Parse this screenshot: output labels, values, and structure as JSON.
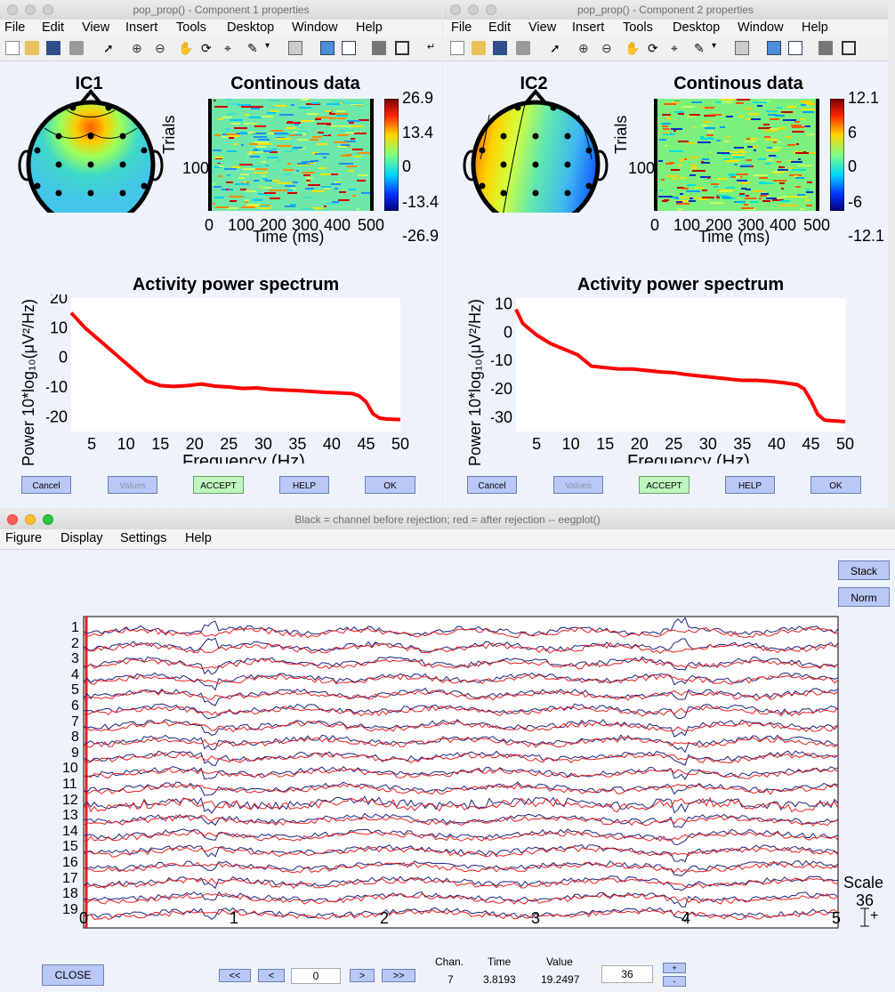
{
  "win1": {
    "title": "pop_prop() - Component 1 properties",
    "menu": [
      "File",
      "Edit",
      "View",
      "Insert",
      "Tools",
      "Desktop",
      "Window",
      "Help"
    ],
    "topo_title": "IC1",
    "erp_title": "Continous data",
    "erp_ylabel": "Trials",
    "erp_ytick": "100",
    "erp_xticks": [
      "0",
      "100",
      "200",
      "300",
      "400",
      "500"
    ],
    "erp_xlabel": "Time (ms)",
    "cbar_ticks": [
      "26.9",
      "13.4",
      "0",
      "-13.4",
      "-26.9"
    ],
    "spec_title": "Activity power spectrum",
    "spec_ylabel": "Power 10*log₁₀(μV²/Hz)",
    "spec_yticks": [
      "20",
      "10",
      "0",
      "-10",
      "-20"
    ],
    "spec_xticks": [
      "5",
      "10",
      "15",
      "20",
      "25",
      "30",
      "35",
      "40",
      "45",
      "50"
    ],
    "spec_xlabel": "Frequency (Hz)",
    "buttons": {
      "cancel": "Cancel",
      "values": "Values",
      "accept": "ACCEPT",
      "help": "HELP",
      "ok": "OK"
    }
  },
  "win2": {
    "title": "pop_prop() - Component 2 properties",
    "menu": [
      "File",
      "Edit",
      "View",
      "Insert",
      "Tools",
      "Desktop",
      "Window",
      "Help"
    ],
    "topo_title": "IC2",
    "erp_title": "Continous data",
    "erp_ylabel": "Trials",
    "erp_ytick": "100",
    "erp_xticks": [
      "0",
      "100",
      "200",
      "300",
      "400",
      "500"
    ],
    "erp_xlabel": "Time (ms)",
    "cbar_ticks": [
      "12.1",
      "6",
      "0",
      "-6",
      "-12.1"
    ],
    "spec_title": "Activity power spectrum",
    "spec_ylabel": "Power 10*log₁₀(μV²/Hz)",
    "spec_yticks": [
      "10",
      "0",
      "-10",
      "-20",
      "-30"
    ],
    "spec_xticks": [
      "5",
      "10",
      "15",
      "20",
      "25",
      "30",
      "35",
      "40",
      "45",
      "50"
    ],
    "spec_xlabel": "Frequency (Hz)",
    "buttons": {
      "cancel": "Cancel",
      "values": "Values",
      "accept": "ACCEPT",
      "help": "HELP",
      "ok": "OK"
    }
  },
  "win3": {
    "title": "Black = channel before rejection; red = after rejection -- eegplot()",
    "menu": [
      "Figure",
      "Display",
      "Settings",
      "Help"
    ],
    "stack_label": "Stack",
    "norm_label": "Norm",
    "channels": [
      "1",
      "2",
      "3",
      "4",
      "5",
      "6",
      "7",
      "8",
      "9",
      "10",
      "11",
      "12",
      "13",
      "14",
      "15",
      "16",
      "17",
      "18",
      "19"
    ],
    "xticks": [
      "0",
      "1",
      "2",
      "3",
      "4",
      "5"
    ],
    "scale_label": "Scale",
    "scale_value": "36",
    "close_label": "CLOSE",
    "nav": {
      "first": "<<",
      "prev": "<",
      "next": ">",
      "last": ">>",
      "position": "0"
    },
    "readout": {
      "chan_label": "Chan.",
      "time_label": "Time",
      "value_label": "Value",
      "chan": "7",
      "time": "3.8193",
      "value": "19.2497"
    },
    "spacing": "36",
    "plus": "+",
    "minus": "-"
  },
  "colors": {
    "trace_before": "#1a237e",
    "trace_after": "#e81c1c",
    "spectrum": "#ff0000",
    "button": "#b9c8f6",
    "accept": "#bff5bf"
  },
  "chart_data": [
    {
      "type": "line",
      "title": "Activity power spectrum",
      "xlabel": "Frequency (Hz)",
      "ylabel": "Power 10*log10(μV²/Hz)",
      "xlim": [
        2,
        50
      ],
      "ylim": [
        -25,
        20
      ],
      "x": [
        2,
        4,
        6,
        8,
        10,
        12,
        13,
        15,
        17,
        19,
        21,
        23,
        25,
        27,
        29,
        31,
        33,
        35,
        37,
        39,
        41,
        43,
        44,
        45,
        46,
        47,
        48,
        50
      ],
      "y": [
        15,
        10,
        6,
        2,
        -2,
        -6,
        -8,
        -9.5,
        -9.8,
        -9.5,
        -9,
        -9.7,
        -10,
        -10.5,
        -10.3,
        -10.8,
        -11,
        -11.2,
        -11.5,
        -11.8,
        -12,
        -12.2,
        -13,
        -15,
        -19,
        -20.5,
        -20.8,
        -21
      ]
    },
    {
      "type": "line",
      "title": "Activity power spectrum",
      "xlabel": "Frequency (Hz)",
      "ylabel": "Power 10*log10(μV²/Hz)",
      "xlim": [
        2,
        50
      ],
      "ylim": [
        -35,
        12
      ],
      "x": [
        2,
        3,
        5,
        7,
        9,
        11,
        13,
        15,
        17,
        19,
        21,
        23,
        25,
        27,
        29,
        31,
        33,
        35,
        37,
        39,
        41,
        43,
        44,
        45,
        46,
        47,
        48,
        50
      ],
      "y": [
        8,
        3,
        -1,
        -4,
        -6,
        -8,
        -12,
        -12.5,
        -13,
        -13,
        -13.5,
        -14,
        -14.3,
        -15,
        -15.5,
        -16,
        -16.5,
        -17,
        -17,
        -17.3,
        -17.8,
        -18.5,
        -20,
        -24,
        -29,
        -31,
        -31.2,
        -31.5
      ]
    }
  ]
}
